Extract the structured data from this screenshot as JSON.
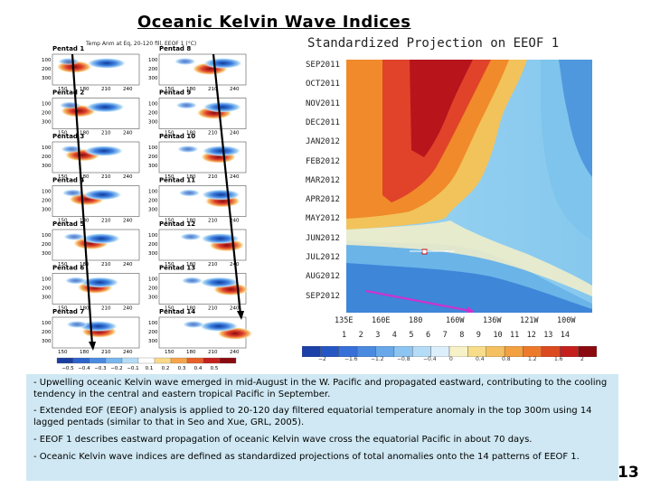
{
  "title": "Oceanic Kelvin Wave Indices",
  "left_panel": {
    "header": "Temp Anm at Eq, 20-120 fill, EEOF 1 (°C)",
    "pentads": [
      "Pentad 1",
      "Pentad 2",
      "Pentad 3",
      "Pentad 4",
      "Pentad 5",
      "Pentad 6",
      "Pentad 7",
      "Pentad 8",
      "Pentad 9",
      "Pentad 10",
      "Pentad 11",
      "Pentad 12",
      "Pentad 13",
      "Pentad 14"
    ],
    "depth_ticks": [
      "100",
      "200",
      "300"
    ],
    "lon_ticks": [
      "150",
      "180",
      "210",
      "240"
    ],
    "colorbar_ticks": [
      "−0.5",
      "−0.4",
      "−0.3",
      "−0.2",
      "−0.1",
      "0.1",
      "0.2",
      "0.3",
      "0.4",
      "0.5"
    ]
  },
  "hovmoller": {
    "title": "Standardized Projection on EEOF 1",
    "months": [
      "SEP2011",
      "OCT2011",
      "NOV2011",
      "DEC2011",
      "JAN2012",
      "FEB2012",
      "MAR2012",
      "APR2012",
      "MAY2012",
      "JUN2012",
      "JUL2012",
      "AUG2012",
      "SEP2012"
    ],
    "longitudes": [
      "135E",
      "160E",
      "180",
      "160W",
      "136W",
      "121W",
      "100W"
    ],
    "pentad_numbers": [
      "1",
      "2",
      "3",
      "4",
      "5",
      "6",
      "7",
      "8",
      "9",
      "10",
      "11",
      "12",
      "13",
      "14"
    ],
    "colorbar_ticks": [
      "−2",
      "−1.6",
      "−1.2",
      "−0.8",
      "−0.4",
      "0",
      "0.4",
      "0.8",
      "1.2",
      "1.6",
      "2"
    ]
  },
  "bullets": [
    "- Upwelling oceanic Kelvin wave emerged in mid-August in the W. Pacific and propagated eastward, contributing to the cooling tendency in the central and eastern tropical Pacific in September.",
    "- Extended EOF (EEOF) analysis is applied to 20-120 day filtered equatorial temperature anomaly in the top 300m using 14 lagged pentads (similar to that in Seo and Xue, GRL, 2005).",
    "-  EEOF 1 describes eastward propagation of  oceanic Kelvin wave cross the equatorial Pacific in about  70 days.",
    "-  Oceanic Kelvin wave indices are defined as standardized projections of total anomalies onto the 14 patterns of EEOF 1."
  ],
  "page_number": "13",
  "colors": {
    "text_box_bg": "#cfe8f3",
    "warm": "#c0141c",
    "cool": "#1f5fd0",
    "arrow_black": "#000000",
    "arrow_magenta": "#cc33cc"
  }
}
